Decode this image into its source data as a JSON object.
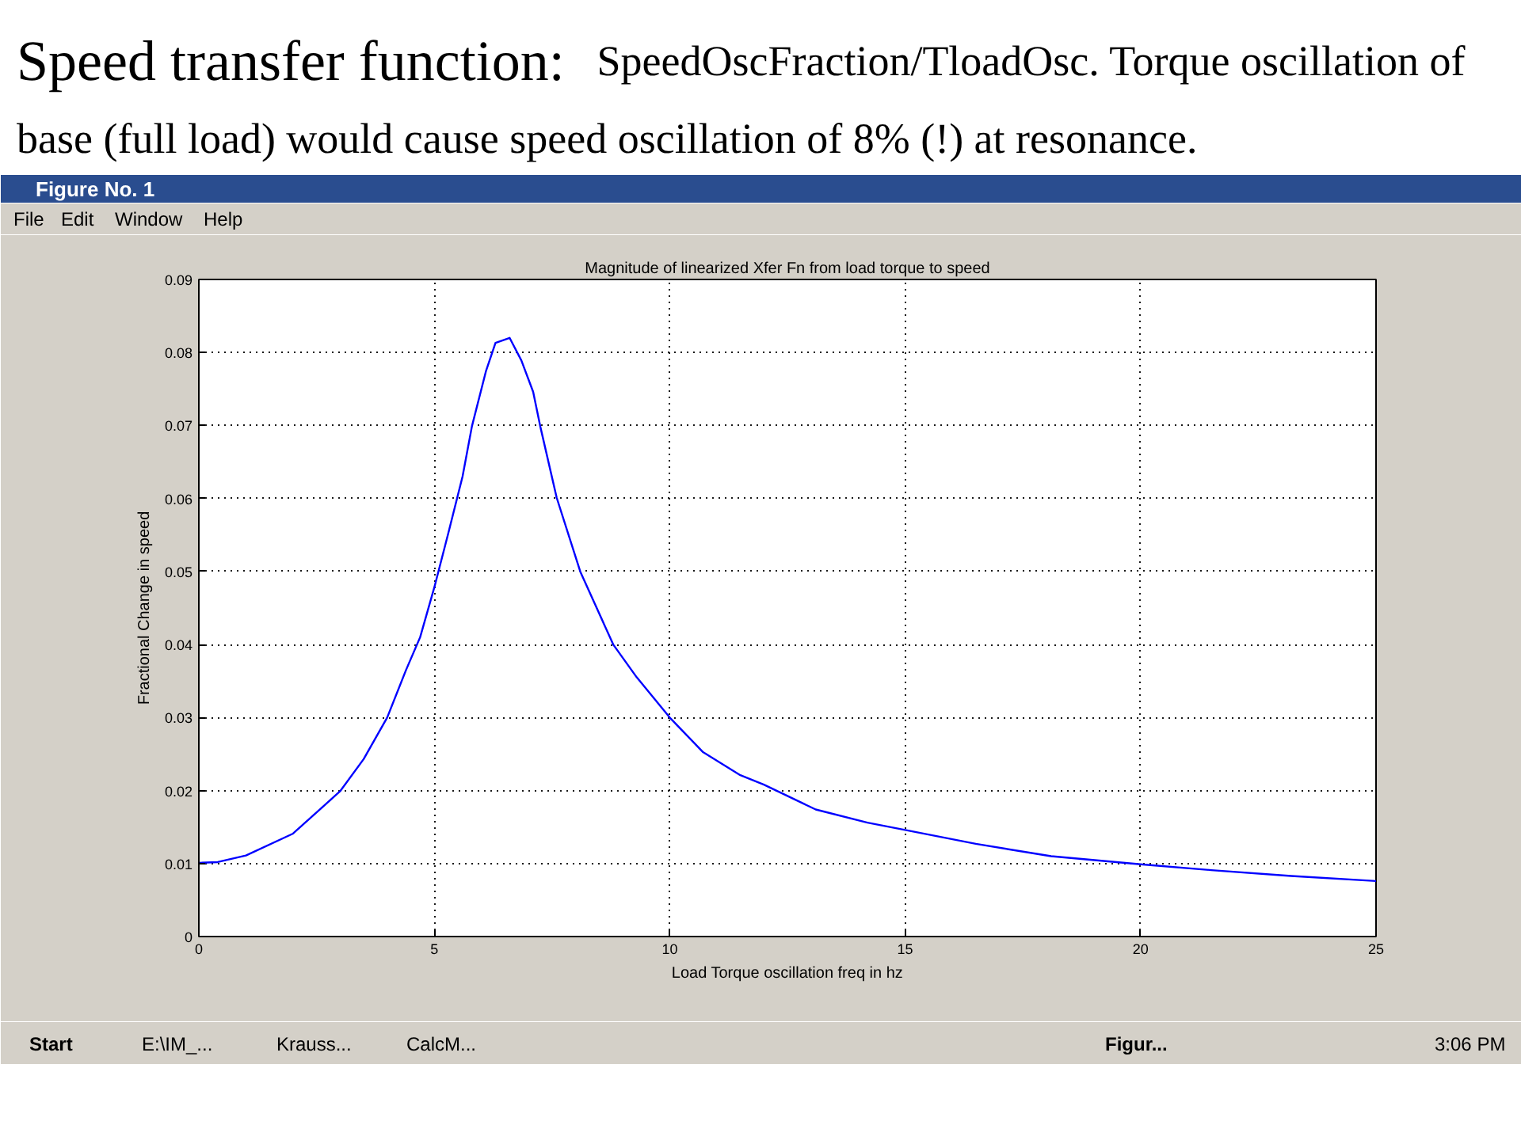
{
  "chart_data": {
    "type": "line",
    "title": "Speed transfer function: SpeedOscFraction/TloadOsc. Torque oscillation of base (full load) would cause speed oscillation of 8% (!) at resonance.",
    "annotations": [
      "Magnitude of linearized Xfer Fn from load torque to speed",
      "Figure No. 1",
      "File",
      "Edit",
      "Window",
      "Help",
      "Start",
      "E:\\IM_...",
      "Krauss...",
      "CalcM...",
      "Figur...",
      "3:06 PM"
    ],
    "xlabel": "Load Torque oscillation freq in hz",
    "ylabel": "Fractional Change in speed",
    "x": [
      0,
      0.4,
      1.0,
      2.0,
      3.0,
      3.5,
      4.0,
      4.4,
      4.7,
      5.0,
      5.3,
      5.6,
      5.8,
      6.1,
      6.3,
      6.6,
      6.85,
      7.1,
      7.25,
      7.6,
      8.1,
      8.8,
      9.3,
      10.0,
      10.7,
      11.5,
      12.0,
      13.1,
      14.2,
      15.0,
      16.5,
      18.1,
      20.0,
      21.5,
      23.2,
      25.0
    ],
    "series": [
      {
        "color": "#0000ff",
        "values": [
          0.0101,
          0.0102,
          0.0111,
          0.0141,
          0.0199,
          0.0243,
          0.03,
          0.0365,
          0.041,
          0.0478,
          0.0553,
          0.063,
          0.0699,
          0.0775,
          0.0813,
          0.082,
          0.0789,
          0.0746,
          0.0699,
          0.0601,
          0.05,
          0.04,
          0.0355,
          0.03,
          0.0253,
          0.0221,
          0.0208,
          0.0174,
          0.0156,
          0.0146,
          0.0127,
          0.011,
          0.0099,
          0.0091,
          0.0083,
          0.0076
        ]
      }
    ],
    "xlim": [
      0,
      25
    ],
    "ylim": [
      0,
      0.09
    ],
    "xticks": [
      0,
      5,
      10,
      15,
      20,
      25
    ],
    "yticks": [
      0,
      0.01,
      0.02,
      0.03,
      0.04,
      0.05,
      0.06,
      0.07,
      0.08,
      0.09
    ],
    "grid": true,
    "line_style": "solid",
    "marker": "none"
  }
}
